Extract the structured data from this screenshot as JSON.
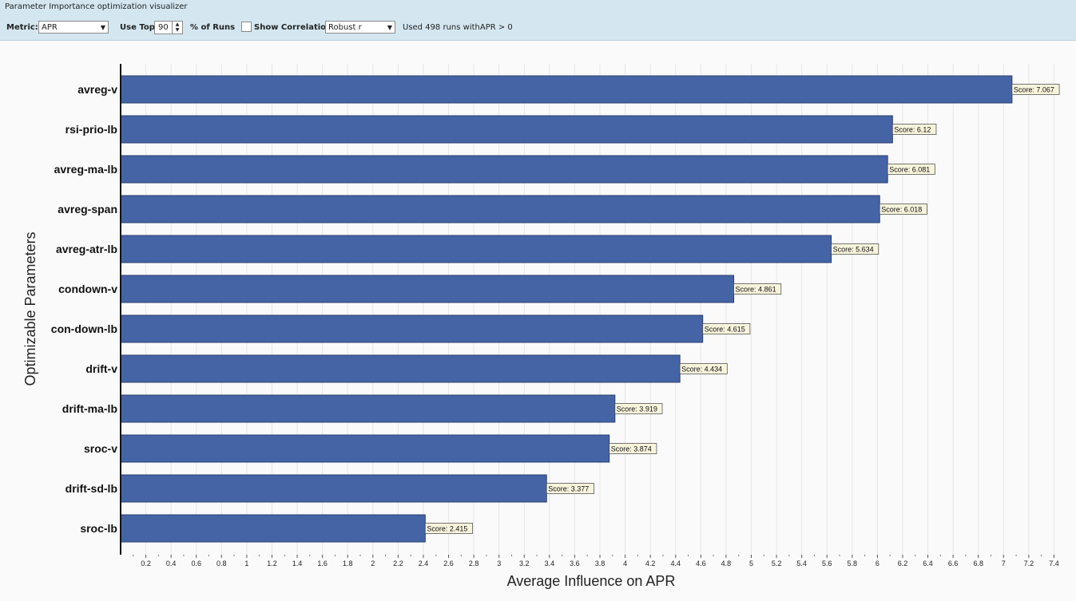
{
  "window": {
    "title": "Parameter Importance optimization visualizer"
  },
  "toolbar": {
    "metric_label": "Metric:",
    "metric_value": "APR",
    "use_top_label": "Use Top",
    "use_top_value": "90",
    "pct_runs_label": "% of Runs",
    "show_correlation_label": "Show Correlation",
    "show_correlation_checked": false,
    "correlation_method": "Robust r",
    "status_text": "Used 498 runs withAPR > 0"
  },
  "colors": {
    "bar": "#4564a6",
    "bar_border": "#2a3f6f",
    "label_bg": "#f8f4dc",
    "toolbar_bg": "#d4e7f1"
  },
  "chart_data": {
    "type": "bar",
    "orientation": "horizontal",
    "categories": [
      "avreg-v",
      "rsi-prio-lb",
      "avreg-ma-lb",
      "avreg-span",
      "avreg-atr-lb",
      "condown-v",
      "con-down-lb",
      "drift-v",
      "drift-ma-lb",
      "sroc-v",
      "drift-sd-lb",
      "sroc-lb"
    ],
    "values": [
      7.067,
      6.12,
      6.081,
      6.018,
      5.634,
      4.861,
      4.615,
      4.434,
      3.919,
      3.874,
      3.377,
      2.415
    ],
    "data_labels": [
      "Score: 7.067",
      "Score: 6.12",
      "Score: 6.081",
      "Score: 6.018",
      "Score: 5.634",
      "Score: 4.861",
      "Score: 4.615",
      "Score: 4.434",
      "Score: 3.919",
      "Score: 3.874",
      "Score: 3.377",
      "Score: 2.415"
    ],
    "xlabel": "Average Influence on APR",
    "ylabel": "Optimizable Parameters",
    "xlim": [
      0,
      7.45
    ],
    "xticks": [
      0.2,
      0.4,
      0.6,
      0.8,
      1,
      1.2,
      1.4,
      1.6,
      1.8,
      2,
      2.2,
      2.4,
      2.6,
      2.8,
      3,
      3.2,
      3.4,
      3.6,
      3.8,
      4,
      4.2,
      4.4,
      4.6,
      4.8,
      5,
      5.2,
      5.4,
      5.6,
      5.8,
      6,
      6.2,
      6.4,
      6.6,
      6.8,
      7,
      7.2,
      7.4
    ],
    "xtick_labels": [
      "0.2",
      "0.4",
      "0.6",
      "0.8",
      "1",
      "1.2",
      "1.4",
      "1.6",
      "1.8",
      "2",
      "2.2",
      "2.4",
      "2.6",
      "2.8",
      "3",
      "3.2",
      "3.4",
      "3.6",
      "3.8",
      "4",
      "4.2",
      "4.4",
      "4.6",
      "4.8",
      "5",
      "5.2",
      "5.4",
      "5.6",
      "5.8",
      "6",
      "6.2",
      "6.4",
      "6.6",
      "6.8",
      "7",
      "7.2",
      "7.4"
    ],
    "grid": true,
    "legend": "none"
  }
}
